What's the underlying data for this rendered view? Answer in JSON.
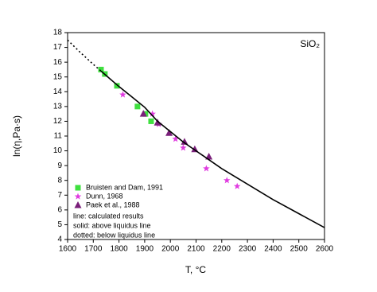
{
  "chart_data": {
    "type": "scatter",
    "title": "SiO₂",
    "x_label": "T, °C",
    "y_label": "ln(η,Pa·s)",
    "xlim": [
      1600,
      2600
    ],
    "ylim": [
      4,
      18
    ],
    "xticks": [
      1600,
      1700,
      1800,
      1900,
      2000,
      2100,
      2200,
      2300,
      2400,
      2500,
      2600
    ],
    "yticks": [
      4,
      5,
      6,
      7,
      8,
      9,
      10,
      11,
      12,
      13,
      14,
      15,
      16,
      17,
      18
    ],
    "grid": false,
    "legend": "lower left",
    "series": [
      {
        "name": "Bruisten and Dam, 1991",
        "color": "#3fe03f",
        "marker": "square",
        "x": [
          1730,
          1745,
          1792,
          1872,
          1903,
          1925
        ],
        "values": [
          15.5,
          15.2,
          14.4,
          13.0,
          12.5,
          12.0
        ]
      },
      {
        "name": "Dunn, 1968",
        "color": "#e03ce0",
        "marker": "star",
        "x": [
          1815,
          1930,
          1955,
          2020,
          2050,
          2140,
          2220,
          2260
        ],
        "values": [
          13.8,
          12.5,
          11.8,
          10.8,
          10.2,
          8.8,
          8.0,
          7.6
        ]
      },
      {
        "name": "Paek et al., 1988",
        "color": "#7a1f7a",
        "marker": "triangle",
        "x": [
          1895,
          1950,
          1995,
          2055,
          2095,
          2150
        ],
        "values": [
          12.5,
          11.9,
          11.2,
          10.6,
          10.1,
          9.6
        ]
      },
      {
        "color": "#000000",
        "marker": "line",
        "style": "dotted",
        "x": [
          1600,
          1650,
          1700,
          1730
        ],
        "values": [
          17.5,
          16.65,
          15.85,
          15.4
        ]
      },
      {
        "color": "#000000",
        "marker": "line",
        "style": "solid",
        "x": [
          1730,
          1750,
          1800,
          1850,
          1900,
          1950,
          2000,
          2050,
          2100,
          2200,
          2300,
          2400,
          2500,
          2600
        ],
        "values": [
          15.4,
          15.1,
          14.35,
          13.65,
          12.95,
          12.0,
          11.3,
          10.6,
          10.0,
          8.8,
          7.75,
          6.7,
          5.75,
          4.8
        ]
      }
    ],
    "annotations": [
      "line: calculated results",
      "solid: above liquidus line",
      "dotted: below liquidus line"
    ]
  }
}
